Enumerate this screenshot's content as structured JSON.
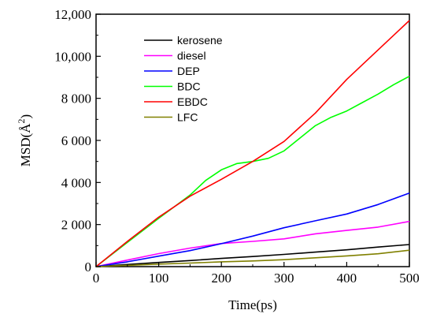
{
  "chart_data": {
    "type": "line",
    "xlabel": "Time(ps)",
    "ylabel_main": "MSD(Å",
    "ylabel_sup": "2",
    "ylabel_close": ")",
    "xlim": [
      0,
      500
    ],
    "ylim": [
      0,
      12000
    ],
    "xticks": [
      0,
      100,
      200,
      300,
      400,
      500
    ],
    "xtick_labels": [
      "0",
      "100",
      "200",
      "300",
      "400",
      "500"
    ],
    "yticks": [
      0,
      2000,
      4000,
      6000,
      8000,
      10000,
      12000
    ],
    "ytick_labels": [
      "0",
      "2 000",
      "4 000",
      "6 000",
      "8 000",
      "10,000",
      "12,000"
    ],
    "grid": false,
    "legend_position": "top-left",
    "series": [
      {
        "name": "kerosene",
        "color": "#000000",
        "x": [
          0,
          50,
          100,
          150,
          200,
          250,
          300,
          350,
          400,
          450,
          500
        ],
        "y": [
          0,
          100,
          200,
          290,
          390,
          480,
          580,
          690,
          800,
          930,
          1050
        ]
      },
      {
        "name": "diesel",
        "color": "#ff00ff",
        "x": [
          0,
          50,
          100,
          150,
          200,
          250,
          300,
          350,
          400,
          450,
          500
        ],
        "y": [
          0,
          310,
          620,
          880,
          1100,
          1200,
          1320,
          1560,
          1720,
          1880,
          2150
        ]
      },
      {
        "name": "DEP",
        "color": "#0000ff",
        "x": [
          0,
          50,
          100,
          150,
          200,
          250,
          300,
          350,
          400,
          450,
          500
        ],
        "y": [
          0,
          230,
          500,
          760,
          1090,
          1450,
          1850,
          2180,
          2500,
          2950,
          3500
        ]
      },
      {
        "name": "BDC",
        "color": "#00ff00",
        "x": [
          0,
          50,
          100,
          150,
          175,
          200,
          225,
          250,
          275,
          300,
          325,
          350,
          375,
          400,
          425,
          450,
          475,
          500
        ],
        "y": [
          0,
          1150,
          2300,
          3400,
          4100,
          4600,
          4900,
          5000,
          5150,
          5500,
          6100,
          6700,
          7100,
          7400,
          7800,
          8200,
          8650,
          9050
        ]
      },
      {
        "name": "EBDC",
        "color": "#ff0000",
        "x": [
          0,
          50,
          100,
          150,
          200,
          250,
          300,
          350,
          400,
          450,
          500
        ],
        "y": [
          0,
          1200,
          2350,
          3350,
          4150,
          5000,
          5950,
          7300,
          8900,
          10300,
          11700
        ]
      },
      {
        "name": "LFC",
        "color": "#808000",
        "x": [
          0,
          50,
          100,
          150,
          200,
          250,
          300,
          350,
          400,
          450,
          500
        ],
        "y": [
          0,
          60,
          120,
          170,
          230,
          270,
          330,
          420,
          510,
          610,
          780
        ]
      }
    ]
  }
}
